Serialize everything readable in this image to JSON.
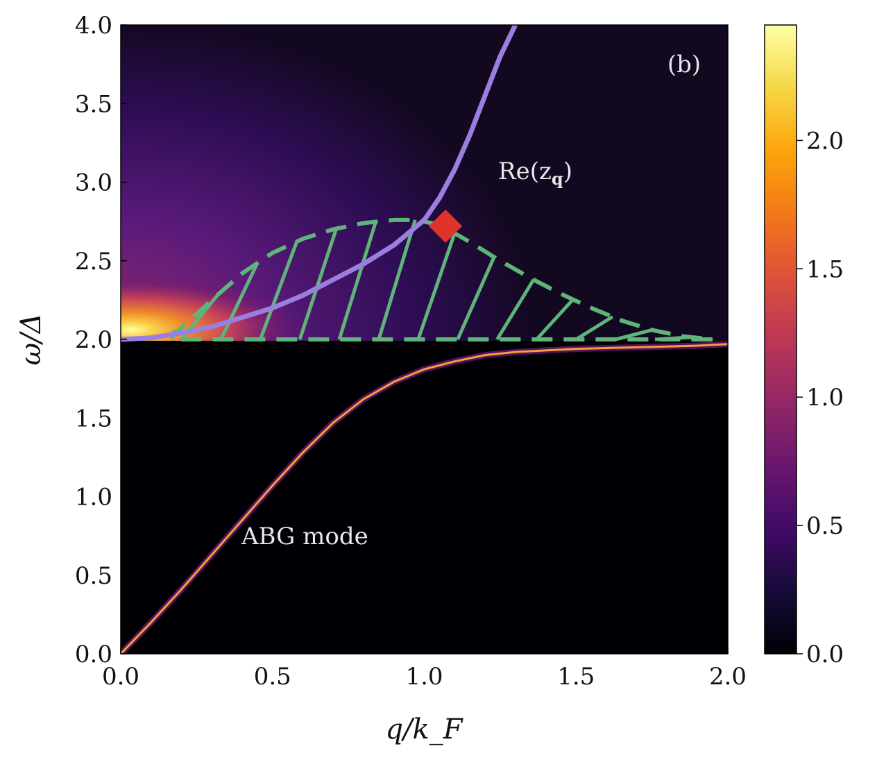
{
  "chart_data": {
    "type": "heatmap",
    "panel_label": "(b)",
    "xlabel": "q/k_F",
    "ylabel": "ω/Δ",
    "xlim": [
      0.0,
      2.0
    ],
    "ylim": [
      0.0,
      4.0
    ],
    "xticks": [
      0.0,
      0.5,
      1.0,
      1.5,
      2.0
    ],
    "xtick_labels": [
      "0.0",
      "0.5",
      "1.0",
      "1.5",
      "2.0"
    ],
    "yticks": [
      0.0,
      0.5,
      1.0,
      1.5,
      2.0,
      2.5,
      3.0,
      3.5,
      4.0
    ],
    "ytick_labels": [
      "0.0",
      "0.5",
      "1.0",
      "1.5",
      "2.0",
      "2.5",
      "3.0",
      "3.5",
      "4.0"
    ],
    "colorbar": {
      "colormap": "inferno",
      "range": [
        0.0,
        2.45
      ],
      "ticks": [
        0.0,
        0.5,
        1.0,
        1.5,
        2.0
      ],
      "tick_labels": [
        "0.0",
        "0.5",
        "1.0",
        "1.5",
        "2.0"
      ]
    },
    "annotations": {
      "re_z_label": "Re(z",
      "re_z_sub": "q",
      "re_z_close": ")",
      "abg_label": "ABG mode"
    },
    "re_z_curve": {
      "color": "#9b7fe0",
      "x": [
        0.0,
        0.1,
        0.2,
        0.3,
        0.4,
        0.5,
        0.6,
        0.7,
        0.8,
        0.9,
        1.0,
        1.05,
        1.1,
        1.15,
        1.2,
        1.25,
        1.3
      ],
      "y": [
        2.0,
        2.01,
        2.04,
        2.08,
        2.14,
        2.2,
        2.28,
        2.38,
        2.48,
        2.6,
        2.76,
        2.9,
        3.08,
        3.3,
        3.55,
        3.8,
        4.0
      ]
    },
    "abg_mode": {
      "color": "#f2a040",
      "x": [
        0.0,
        0.1,
        0.2,
        0.3,
        0.4,
        0.5,
        0.6,
        0.7,
        0.8,
        0.9,
        1.0,
        1.1,
        1.2,
        1.3,
        1.4,
        1.5,
        1.6,
        1.7,
        1.8,
        1.9,
        2.0
      ],
      "y": [
        0.0,
        0.2,
        0.41,
        0.63,
        0.85,
        1.07,
        1.28,
        1.47,
        1.62,
        1.73,
        1.81,
        1.86,
        1.9,
        1.92,
        1.93,
        1.94,
        1.945,
        1.95,
        1.955,
        1.96,
        1.97
      ]
    },
    "hatched_region": {
      "color": "#5fb47a",
      "x": [
        0.17,
        0.3,
        0.4,
        0.5,
        0.6,
        0.7,
        0.8,
        0.9,
        0.97,
        1.05,
        1.15,
        1.25,
        1.35,
        1.45,
        1.55,
        1.65,
        1.75,
        1.85,
        1.95
      ],
      "upper": [
        2.02,
        2.25,
        2.42,
        2.55,
        2.64,
        2.7,
        2.74,
        2.76,
        2.76,
        2.73,
        2.62,
        2.5,
        2.39,
        2.29,
        2.2,
        2.12,
        2.06,
        2.02,
        2.0
      ],
      "lower": 2.0
    },
    "marker": {
      "shape": "diamond",
      "color": "#e0342a",
      "x": 1.07,
      "y": 2.72
    }
  }
}
